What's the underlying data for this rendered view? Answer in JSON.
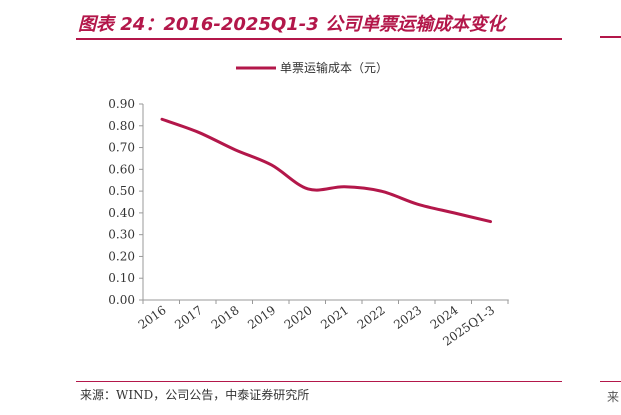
{
  "header": {
    "title": "图表 24：2016-2025Q1-3 公司单票运输成本变化"
  },
  "footer": {
    "source": "来源：WIND，公司公告，中泰证券研究所"
  },
  "edge": {
    "partial_char": "来"
  },
  "chart_data": {
    "type": "line",
    "title": "",
    "xlabel": "",
    "ylabel": "",
    "categories": [
      "2016",
      "2017",
      "2018",
      "2019",
      "2020",
      "2021",
      "2022",
      "2023",
      "2024",
      "2025Q1-3"
    ],
    "series": [
      {
        "name": "单票运输成本（元）",
        "color": "#b3174a",
        "values": [
          0.83,
          0.77,
          0.69,
          0.62,
          0.51,
          0.52,
          0.5,
          0.44,
          0.4,
          0.36
        ]
      }
    ],
    "yticks": [
      "0.00",
      "0.10",
      "0.20",
      "0.30",
      "0.40",
      "0.50",
      "0.60",
      "0.70",
      "0.80",
      "0.90"
    ],
    "ylim": [
      0,
      0.9
    ],
    "grid": false,
    "legend": "top-center",
    "smooth": true
  }
}
